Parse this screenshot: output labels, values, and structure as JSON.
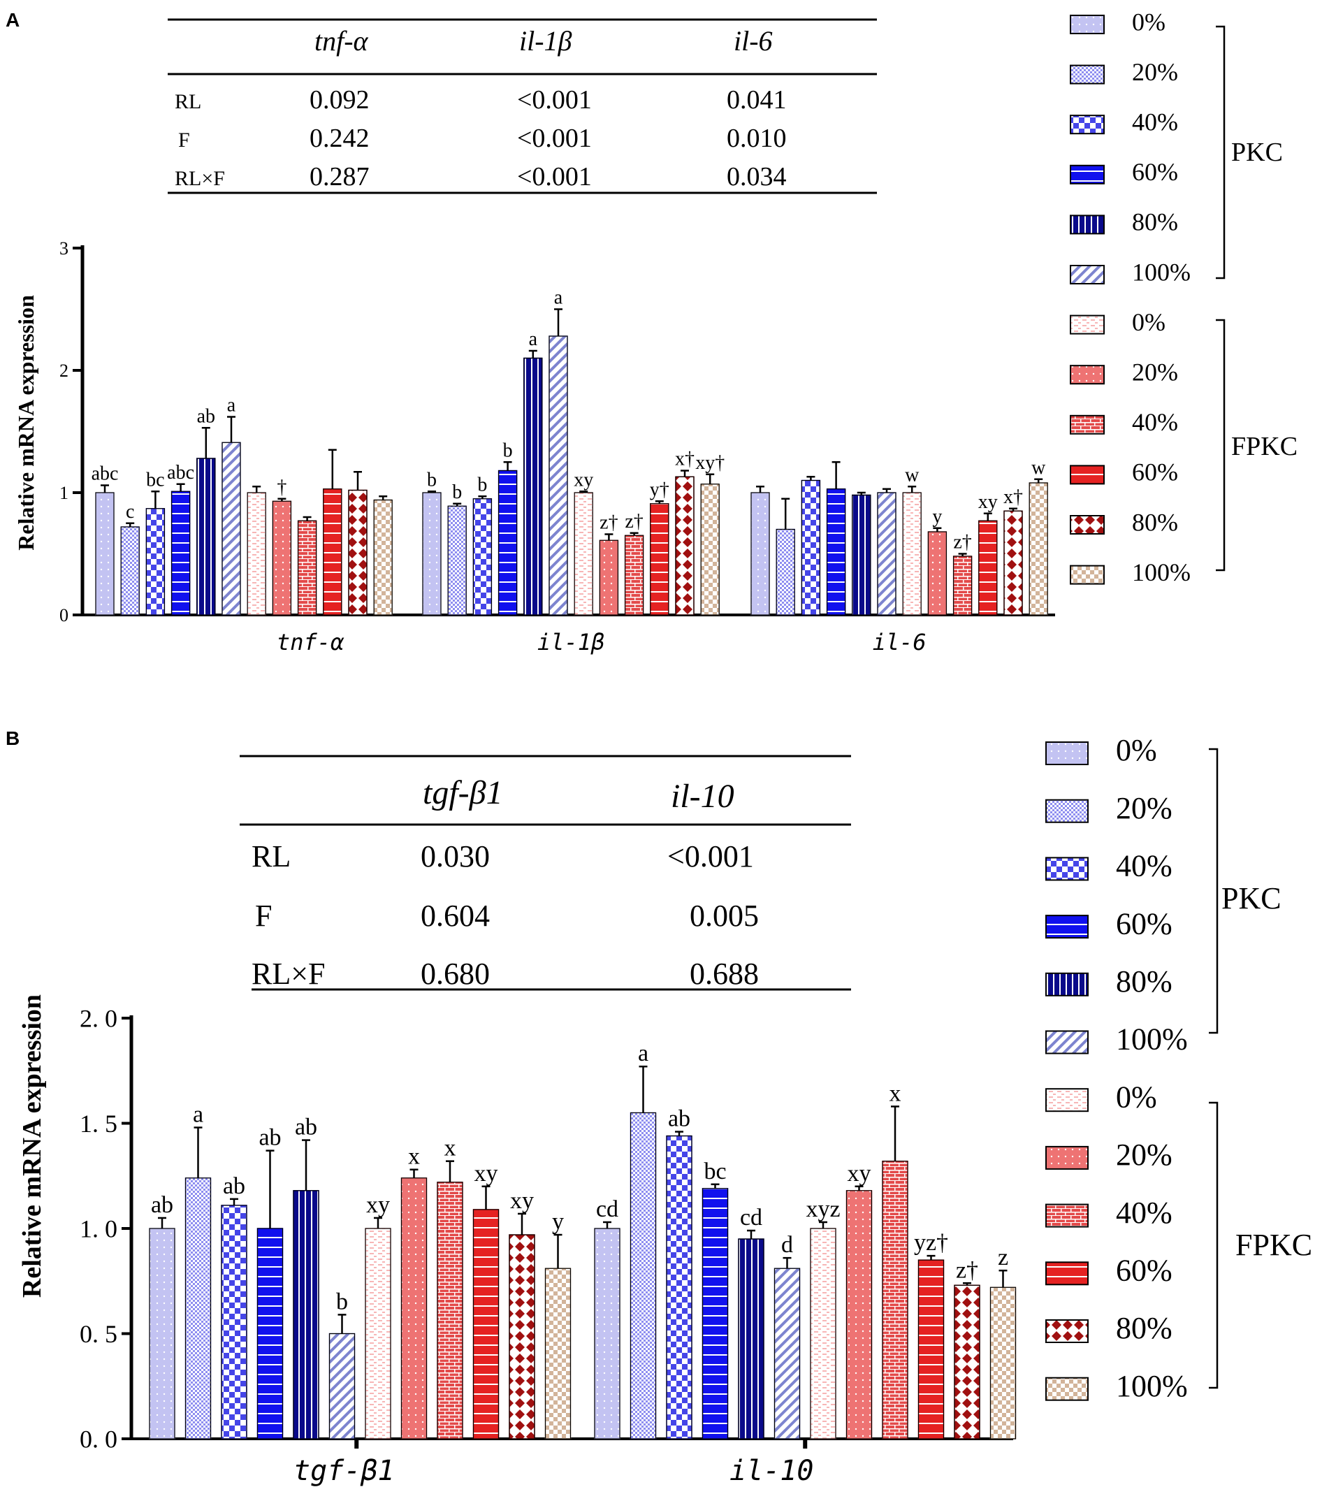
{
  "figure": {
    "panel_labels": [
      "A",
      "B"
    ],
    "group_labels": [
      "PKC",
      "FPKC"
    ],
    "legend_levels": [
      "0%",
      "20%",
      "40%",
      "60%",
      "80%",
      "100%"
    ]
  },
  "series_styles": [
    {
      "name": "PKC 0%",
      "color": "#c3c3f2",
      "pattern": "dots"
    },
    {
      "name": "PKC 20%",
      "color": "#8e8ef0",
      "pattern": "fine-check"
    },
    {
      "name": "PKC 40%",
      "color": "#4545e8",
      "pattern": "check"
    },
    {
      "name": "PKC 60%",
      "color": "#1111ee",
      "pattern": "hline"
    },
    {
      "name": "PKC 80%",
      "color": "#0a0a8a",
      "pattern": "vline"
    },
    {
      "name": "PKC 100%",
      "color": "#7d84cf",
      "pattern": "diag"
    },
    {
      "name": "FPKC 0%",
      "color": "#f7b6b6",
      "pattern": "dash"
    },
    {
      "name": "FPKC 20%",
      "color": "#ee7373",
      "pattern": "dots"
    },
    {
      "name": "FPKC 40%",
      "color": "#e34a4a",
      "pattern": "brick"
    },
    {
      "name": "FPKC 60%",
      "color": "#e52222",
      "pattern": "hline"
    },
    {
      "name": "FPKC 80%",
      "color": "#a01010",
      "pattern": "diamond"
    },
    {
      "name": "FPKC 100%",
      "color": "#d2b49a",
      "pattern": "checker"
    }
  ],
  "tables": [
    {
      "headers": [
        "tnf-α",
        "il-1β",
        "il-6"
      ],
      "rows": [
        {
          "label": "RL",
          "values": [
            "0.092",
            "<0.001",
            "0.041"
          ]
        },
        {
          "label": "F",
          "values": [
            "0.242",
            "<0.001",
            "0.010"
          ]
        },
        {
          "label": "RL×F",
          "values": [
            "0.287",
            "<0.001",
            "0.034"
          ]
        }
      ]
    },
    {
      "headers": [
        "tgf-β1",
        "il-10"
      ],
      "rows": [
        {
          "label": "RL",
          "values": [
            "0.030",
            "<0.001"
          ]
        },
        {
          "label": "F",
          "values": [
            "0.604",
            "0.005"
          ]
        },
        {
          "label": "RL×F",
          "values": [
            "0.680",
            "0.688"
          ]
        }
      ]
    }
  ],
  "chart_data": [
    {
      "type": "bar",
      "panel": "A",
      "ylabel": "Relative mRNA expression",
      "ylim": [
        0,
        3
      ],
      "yticks": [
        "0",
        "1",
        "2",
        "3"
      ],
      "categories": [
        "tnf-α",
        "il-1β",
        "il-6"
      ],
      "series": [
        {
          "name": "PKC 0%",
          "values": [
            1.0,
            1.0,
            1.0
          ],
          "errors": [
            0.06,
            0.01,
            0.05
          ],
          "labels": [
            "abc",
            "b",
            ""
          ]
        },
        {
          "name": "PKC 20%",
          "values": [
            0.72,
            0.89,
            0.7
          ],
          "errors": [
            0.03,
            0.02,
            0.25
          ],
          "labels": [
            "c",
            "b",
            ""
          ]
        },
        {
          "name": "PKC 40%",
          "values": [
            0.87,
            0.95,
            1.1
          ],
          "errors": [
            0.14,
            0.02,
            0.03
          ],
          "labels": [
            "bc",
            "b",
            ""
          ]
        },
        {
          "name": "PKC 60%",
          "values": [
            1.01,
            1.18,
            1.03
          ],
          "errors": [
            0.06,
            0.07,
            0.22
          ],
          "labels": [
            "abc",
            "b",
            ""
          ]
        },
        {
          "name": "PKC 80%",
          "values": [
            1.28,
            2.1,
            0.98
          ],
          "errors": [
            0.25,
            0.06,
            0.02
          ],
          "labels": [
            "ab",
            "a",
            ""
          ]
        },
        {
          "name": "PKC 100%",
          "values": [
            1.41,
            2.28,
            1.0
          ],
          "errors": [
            0.21,
            0.22,
            0.03
          ],
          "labels": [
            "a",
            "a",
            ""
          ]
        },
        {
          "name": "FPKC 0%",
          "values": [
            1.0,
            1.0,
            1.0
          ],
          "errors": [
            0.05,
            0.01,
            0.05
          ],
          "labels": [
            "",
            "xy",
            "w"
          ]
        },
        {
          "name": "FPKC 20%",
          "values": [
            0.93,
            0.61,
            0.68
          ],
          "errors": [
            0.02,
            0.05,
            0.03
          ],
          "labels": [
            "†",
            "z†",
            "y"
          ]
        },
        {
          "name": "FPKC 40%",
          "values": [
            0.77,
            0.65,
            0.48
          ],
          "errors": [
            0.03,
            0.02,
            0.02
          ],
          "labels": [
            "",
            "z†",
            "z†"
          ]
        },
        {
          "name": "FPKC 60%",
          "values": [
            1.03,
            0.91,
            0.77
          ],
          "errors": [
            0.32,
            0.02,
            0.06
          ],
          "labels": [
            "",
            "y†",
            "xy"
          ]
        },
        {
          "name": "FPKC 80%",
          "values": [
            1.02,
            1.13,
            0.85
          ],
          "errors": [
            0.15,
            0.05,
            0.02
          ],
          "labels": [
            "",
            "x†",
            "x†"
          ]
        },
        {
          "name": "FPKC 100%",
          "values": [
            0.94,
            1.07,
            1.08
          ],
          "errors": [
            0.03,
            0.08,
            0.03
          ],
          "labels": [
            "",
            "xy†",
            "w"
          ]
        }
      ]
    },
    {
      "type": "bar",
      "panel": "B",
      "ylabel": "Relative mRNA expression",
      "ylim": [
        0,
        2.0
      ],
      "yticks": [
        "0. 0",
        "0. 5",
        "1. 0",
        "1. 5",
        "2. 0"
      ],
      "categories": [
        "tgf-β1",
        "il-10"
      ],
      "series": [
        {
          "name": "PKC 0%",
          "values": [
            1.0,
            1.0
          ],
          "errors": [
            0.05,
            0.03
          ],
          "labels": [
            "ab",
            "cd"
          ]
        },
        {
          "name": "PKC 20%",
          "values": [
            1.24,
            1.55
          ],
          "errors": [
            0.24,
            0.22
          ],
          "labels": [
            "a",
            "a"
          ]
        },
        {
          "name": "PKC 40%",
          "values": [
            1.11,
            1.44
          ],
          "errors": [
            0.03,
            0.02
          ],
          "labels": [
            "ab",
            "ab"
          ]
        },
        {
          "name": "PKC 60%",
          "values": [
            1.0,
            1.19
          ],
          "errors": [
            0.37,
            0.02
          ],
          "labels": [
            "ab",
            "bc"
          ]
        },
        {
          "name": "PKC 80%",
          "values": [
            1.18,
            0.95
          ],
          "errors": [
            0.24,
            0.04
          ],
          "labels": [
            "ab",
            "cd"
          ]
        },
        {
          "name": "PKC 100%",
          "values": [
            0.5,
            0.81
          ],
          "errors": [
            0.09,
            0.05
          ],
          "labels": [
            "b",
            "d"
          ]
        },
        {
          "name": "FPKC 0%",
          "values": [
            1.0,
            1.0
          ],
          "errors": [
            0.05,
            0.03
          ],
          "labels": [
            "xy",
            "xyz"
          ]
        },
        {
          "name": "FPKC 20%",
          "values": [
            1.24,
            1.18
          ],
          "errors": [
            0.04,
            0.02
          ],
          "labels": [
            "x",
            "xy"
          ]
        },
        {
          "name": "FPKC 40%",
          "values": [
            1.22,
            1.32
          ],
          "errors": [
            0.1,
            0.26
          ],
          "labels": [
            "x",
            "x"
          ]
        },
        {
          "name": "FPKC 60%",
          "values": [
            1.09,
            0.85
          ],
          "errors": [
            0.11,
            0.02
          ],
          "labels": [
            "xy",
            "yz†"
          ]
        },
        {
          "name": "FPKC 80%",
          "values": [
            0.97,
            0.73
          ],
          "errors": [
            0.1,
            0.01
          ],
          "labels": [
            "xy",
            "z†"
          ]
        },
        {
          "name": "FPKC 100%",
          "values": [
            0.81,
            0.72
          ],
          "errors": [
            0.16,
            0.08
          ],
          "labels": [
            "y",
            "z"
          ]
        }
      ]
    }
  ]
}
